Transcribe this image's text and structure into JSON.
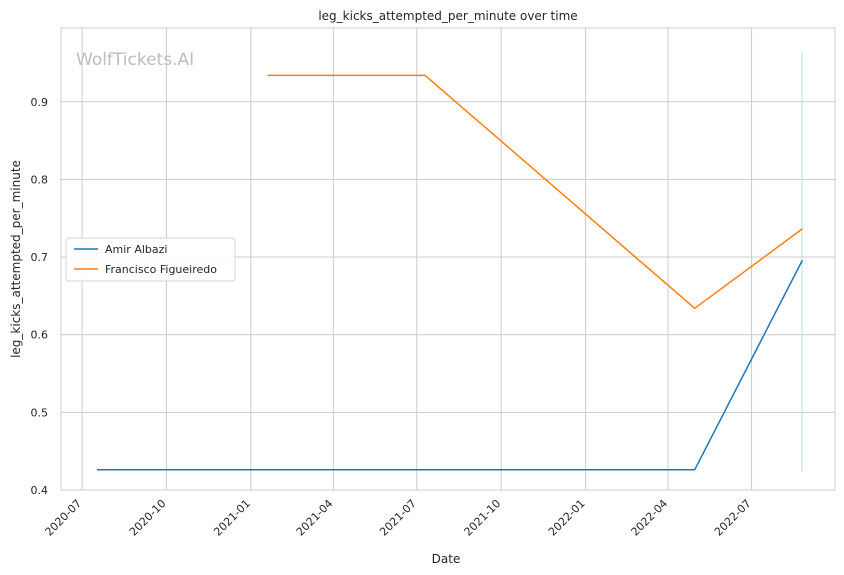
{
  "chart_data": {
    "type": "line",
    "title": "leg_kicks_attempted_per_minute over time",
    "xlabel": "Date",
    "ylabel": "leg_kicks_attempted_per_minute",
    "watermark": "WolfTickets.AI",
    "x_ticks": [
      "2020-07",
      "2020-10",
      "2021-01",
      "2021-04",
      "2021-07",
      "2021-10",
      "2022-01",
      "2022-04",
      "2022-07"
    ],
    "y_ticks": [
      "0.4",
      "0.5",
      "0.6",
      "0.7",
      "0.8",
      "0.9"
    ],
    "xlim": [
      "2020-06-08",
      "2022-09-30"
    ],
    "ylim": [
      0.4,
      0.995
    ],
    "grid": true,
    "legend_position": "center-left",
    "series": [
      {
        "name": "Amir Albazi",
        "color": "#1f77b4",
        "points": [
          {
            "x": "2020-07-18",
            "y": 0.426
          },
          {
            "x": "2022-04-30",
            "y": 0.426
          },
          {
            "x": "2022-08-25",
            "y": 0.695
          }
        ]
      },
      {
        "name": "Francisco Figueiredo",
        "color": "#ff7f0e",
        "points": [
          {
            "x": "2021-01-20",
            "y": 0.934
          },
          {
            "x": "2021-07-10",
            "y": 0.934
          },
          {
            "x": "2022-04-30",
            "y": 0.634
          },
          {
            "x": "2022-08-25",
            "y": 0.736
          }
        ]
      }
    ],
    "annotations": [
      {
        "type": "vertical_line",
        "x": "2022-08-25",
        "y_range": [
          0.423,
          0.964
        ],
        "color": "#aee5d0"
      }
    ]
  }
}
